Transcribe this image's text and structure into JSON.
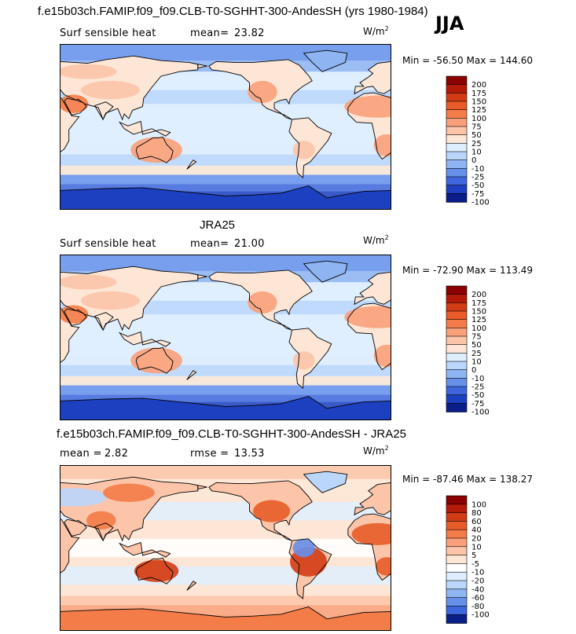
{
  "figure": {
    "title": "f.e15b03ch.FAMIP.f09_f09.CLB-T0-SGHHT-300-AndesSH (yrs 1980-1984)",
    "season": "JJA"
  },
  "chart_data": [
    {
      "type": "heatmap",
      "name": "model",
      "variable": "Surf sensible heat",
      "stat1_label": "mean=",
      "stat1_value": "23.82",
      "units_base": "W/m",
      "units_exp": "2",
      "min_label": "Min =",
      "min_value": "-56.50",
      "max_label": "Max =",
      "max_value": "144.60",
      "levels": [
        "200",
        "175",
        "150",
        "125",
        "100",
        "75",
        "50",
        "25",
        "10",
        "0",
        "-10",
        "-25",
        "-50",
        "-75",
        "-100"
      ],
      "colors": [
        "#8b0000",
        "#b41a08",
        "#d23c14",
        "#e75c28",
        "#f47c48",
        "#f9a07a",
        "#fcc4a8",
        "#fde6d6",
        "#dfeeff",
        "#bad6fb",
        "#8fb4f2",
        "#6690ea",
        "#3f66dc",
        "#1d40c0",
        "#0a1e8a"
      ]
    },
    {
      "type": "heatmap",
      "name": "obs",
      "dataset_title": "JRA25",
      "variable": "Surf sensible heat",
      "stat1_label": "mean=",
      "stat1_value": "21.00",
      "units_base": "W/m",
      "units_exp": "2",
      "min_label": "Min =",
      "min_value": "-72.90",
      "max_label": "Max =",
      "max_value": "113.49",
      "levels": [
        "200",
        "175",
        "150",
        "125",
        "100",
        "75",
        "50",
        "25",
        "10",
        "0",
        "-10",
        "-25",
        "-50",
        "-75",
        "-100"
      ],
      "colors": [
        "#8b0000",
        "#b41a08",
        "#d23c14",
        "#e75c28",
        "#f47c48",
        "#f9a07a",
        "#fcc4a8",
        "#fde6d6",
        "#dfeeff",
        "#bad6fb",
        "#8fb4f2",
        "#6690ea",
        "#3f66dc",
        "#1d40c0",
        "#0a1e8a"
      ]
    },
    {
      "type": "heatmap",
      "name": "diff",
      "dataset_title": "f.e15b03ch.FAMIP.f09_f09.CLB-T0-SGHHT-300-AndesSH - JRA25",
      "stat1_label": "mean =",
      "stat1_value": "2.82",
      "stat2_label": "rmse =",
      "stat2_value": "13.53",
      "units_base": "W/m",
      "units_exp": "2",
      "min_label": "Min =",
      "min_value": "-87.46",
      "max_label": "Max =",
      "max_value": "138.27",
      "levels": [
        "100",
        "80",
        "60",
        "40",
        "20",
        "10",
        "5",
        "-5",
        "-10",
        "-20",
        "-40",
        "-60",
        "-80",
        "-100"
      ],
      "colors": [
        "#8b0000",
        "#b41a08",
        "#d23c14",
        "#e75c28",
        "#f47c48",
        "#f9a07a",
        "#fcc4a8",
        "#fde6d6",
        "#ffffff",
        "#dfeeff",
        "#bad6fb",
        "#8fb4f2",
        "#6690ea",
        "#3f66dc",
        "#0a1e8a"
      ]
    }
  ]
}
